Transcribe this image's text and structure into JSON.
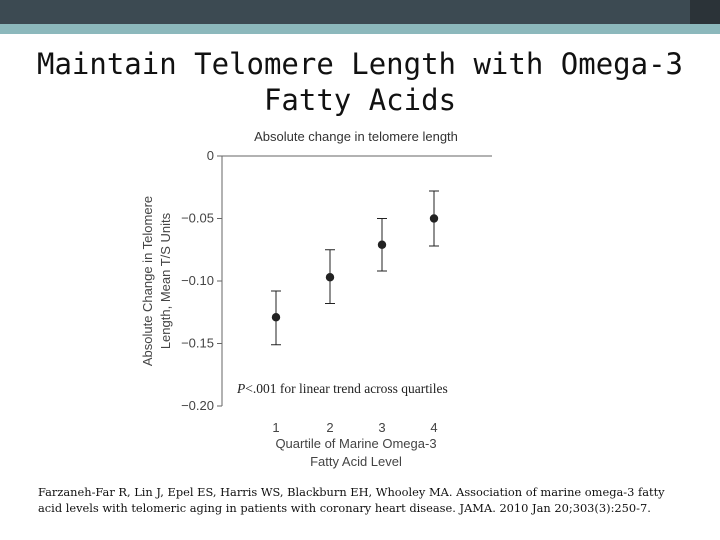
{
  "slide": {
    "title": "Maintain Telomere Length with Omega-3 Fatty Acids",
    "citation": "Farzaneh-Far R, Lin J, Epel ES, Harris WS, Blackburn EH, Whooley MA.  Association of marine omega-3 fatty acid levels with telomeric aging in patients with coronary heart disease. JAMA. 2010 Jan 20;303(3):250-7."
  },
  "colors": {
    "header_dark": "#3c4a52",
    "header_accent": "#8cb8bc",
    "marker": "#222222",
    "axis": "#666666"
  },
  "chart_data": {
    "type": "scatter",
    "title": "Absolute change in telomere length",
    "ylabel": "Absolute Change in Telomere Length, Mean T/S Units",
    "xlabel": "Quartile of Marine Omega-3 Fatty Acid Level",
    "categories": [
      "1",
      "2",
      "3",
      "4"
    ],
    "values": [
      -0.129,
      -0.097,
      -0.071,
      -0.05
    ],
    "error_low": [
      -0.151,
      -0.118,
      -0.092,
      -0.072
    ],
    "error_high": [
      -0.108,
      -0.075,
      -0.05,
      -0.028
    ],
    "ylim": [
      -0.2,
      0
    ],
    "yticks": [
      0,
      -0.05,
      -0.1,
      -0.15,
      -0.2
    ],
    "ytick_labels": [
      "0",
      "−0.05",
      "−0.10",
      "−0.15",
      "−0.20"
    ],
    "annotation": "P<.001 for linear trend across quartiles",
    "grid": false
  }
}
